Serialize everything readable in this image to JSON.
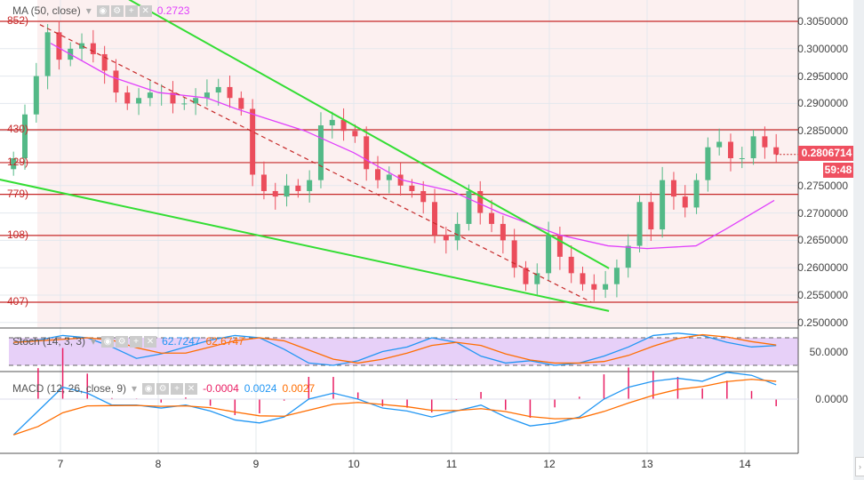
{
  "legend": {
    "ma_label": "MA (50, close)",
    "ma_value": "0.2723",
    "stoch_label": "Stoch (14, 3, 3)",
    "stoch_k": "62.7247",
    "stoch_d": "62.6747",
    "macd_label": "MACD (12, 26, close, 9)",
    "macd_hist": "-0.0004",
    "macd_line": "0.0024",
    "macd_signal": "0.0027"
  },
  "price_axis": [
    "0.3050000",
    "0.3000000",
    "0.2950000",
    "0.2900000",
    "0.2850000",
    "0.2750000",
    "0.2700000",
    "0.2650000",
    "0.2600000",
    "0.2550000",
    "0.2500000"
  ],
  "last_price": "0.2806714",
  "countdown": "59:48",
  "stoch_axis": "50.0000",
  "macd_axis": "0.0000",
  "time_axis": [
    "7",
    "8",
    "9",
    "10",
    "11",
    "12",
    "13",
    "14"
  ],
  "level_labels": [
    "852)",
    "430)",
    "129)",
    "779)",
    "108)",
    "407)"
  ],
  "colors": {
    "up": "#53b987",
    "down": "#eb4d5c",
    "ma": "#e040fb",
    "trend": "#33dd33",
    "level": "#c62828",
    "stoch_k": "#2196f3",
    "stoch_d": "#ff6d00",
    "hist": "#e91e63"
  },
  "chart_data": {
    "type": "candlestick",
    "ylim": [
      0.2475,
      0.309
    ],
    "xlim_days": [
      6.05,
      14.8
    ],
    "candles": {
      "start_day": 6.52,
      "end_day": 14.32,
      "closes": [
        0.28,
        0.288,
        0.295,
        0.303,
        0.298,
        0.3,
        0.301,
        0.299,
        0.296,
        0.292,
        0.29,
        0.291,
        0.292,
        0.292,
        0.29,
        0.29,
        0.291,
        0.292,
        0.293,
        0.291,
        0.289,
        0.277,
        0.274,
        0.273,
        0.275,
        0.274,
        0.276,
        0.286,
        0.287,
        0.285,
        0.284,
        0.278,
        0.276,
        0.277,
        0.275,
        0.274,
        0.272,
        0.266,
        0.265,
        0.268,
        0.274,
        0.27,
        0.268,
        0.265,
        0.26,
        0.257,
        0.259,
        0.266,
        0.262,
        0.259,
        0.257,
        0.256,
        0.257,
        0.26,
        0.264,
        0.272,
        0.267,
        0.276,
        0.273,
        0.271,
        0.276,
        0.282,
        0.283,
        0.28,
        0.28,
        0.284,
        0.282,
        0.2807
      ]
    },
    "ma50": [
      [
        6.9,
        0.301
      ],
      [
        7.5,
        0.295
      ],
      [
        8,
        0.292
      ],
      [
        8.5,
        0.291
      ],
      [
        8.8,
        0.289
      ],
      [
        9.5,
        0.285
      ],
      [
        10,
        0.281
      ],
      [
        10.5,
        0.276
      ],
      [
        11,
        0.274
      ],
      [
        11.5,
        0.27
      ],
      [
        12.1,
        0.266
      ],
      [
        12.6,
        0.264
      ],
      [
        13,
        0.2635
      ],
      [
        13.5,
        0.264
      ],
      [
        13.8,
        0.267
      ],
      [
        14.3,
        0.2723
      ]
    ],
    "levels": [
      0.305,
      0.2852,
      0.2792,
      0.2734,
      0.2659,
      0.2537
    ],
    "trendlines": [
      {
        "style": "solid",
        "p": [
          [
            7.7,
            0.309
          ],
          [
            12.61,
            0.2599
          ]
        ]
      },
      {
        "style": "solid",
        "p": [
          [
            6.38,
            0.2761
          ],
          [
            12.61,
            0.2521
          ]
        ]
      },
      {
        "style": "dashed",
        "p": [
          [
            6.79,
            0.3044
          ],
          [
            12.43,
            0.2537
          ]
        ]
      }
    ],
    "stoch_k": [
      70,
      75,
      85,
      80,
      60,
      35,
      45,
      60,
      75,
      85,
      80,
      55,
      25,
      20,
      30,
      50,
      60,
      80,
      70,
      40,
      25,
      30,
      20,
      25,
      40,
      60,
      85,
      90,
      85,
      70,
      60,
      63
    ],
    "macd": [
      -0.006,
      -0.002,
      0.002,
      0.001,
      -0.001,
      -0.001,
      -0.0015,
      -0.001,
      -0.002,
      -0.0035,
      -0.004,
      -0.003,
      0.0,
      0.001,
      0.0,
      -0.0015,
      -0.002,
      -0.003,
      -0.002,
      -0.001,
      -0.003,
      -0.0045,
      -0.004,
      -0.003,
      0.0,
      0.002,
      0.003,
      0.0035,
      0.003,
      0.0045,
      0.004,
      0.0024
    ]
  }
}
